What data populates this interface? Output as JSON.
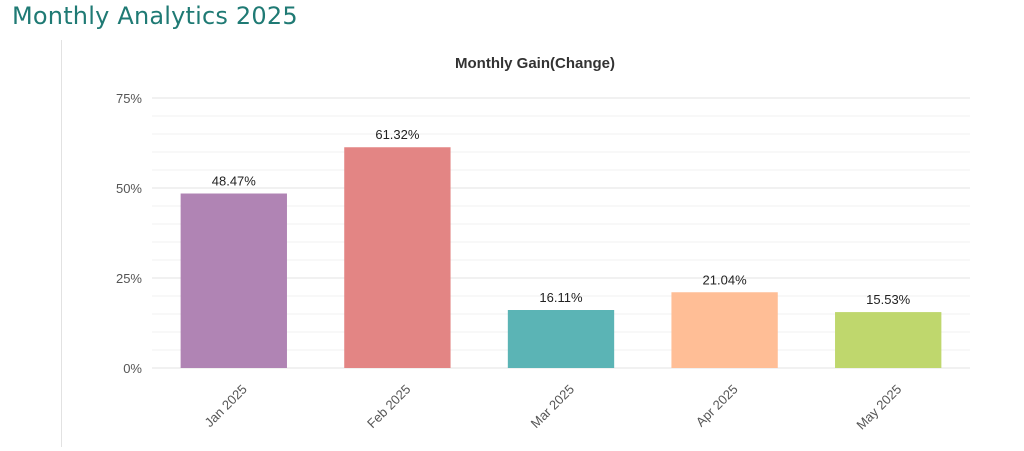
{
  "header": {
    "title": "Monthly Analytics 2025",
    "title_color": "#1f7a74"
  },
  "chart_data": {
    "type": "bar",
    "title": "Monthly Gain(Change)",
    "xlabel": "",
    "ylabel": "",
    "categories": [
      "Jan 2025",
      "Feb 2025",
      "Mar 2025",
      "Apr 2025",
      "May 2025"
    ],
    "values": [
      48.47,
      61.32,
      16.11,
      21.04,
      15.53
    ],
    "data_labels": [
      "48.47%",
      "61.32%",
      "16.11%",
      "21.04%",
      "15.53%"
    ],
    "colors": [
      "#b084b4",
      "#e38584",
      "#5bb4b5",
      "#ffbe96",
      "#bfd76d"
    ],
    "ylim": [
      0,
      75
    ],
    "yticks": [
      0,
      25,
      50,
      75
    ],
    "ytick_labels": [
      "0%",
      "25%",
      "50%",
      "75%"
    ],
    "x_tick_rotation": -45,
    "grid": true,
    "legend": "none"
  }
}
